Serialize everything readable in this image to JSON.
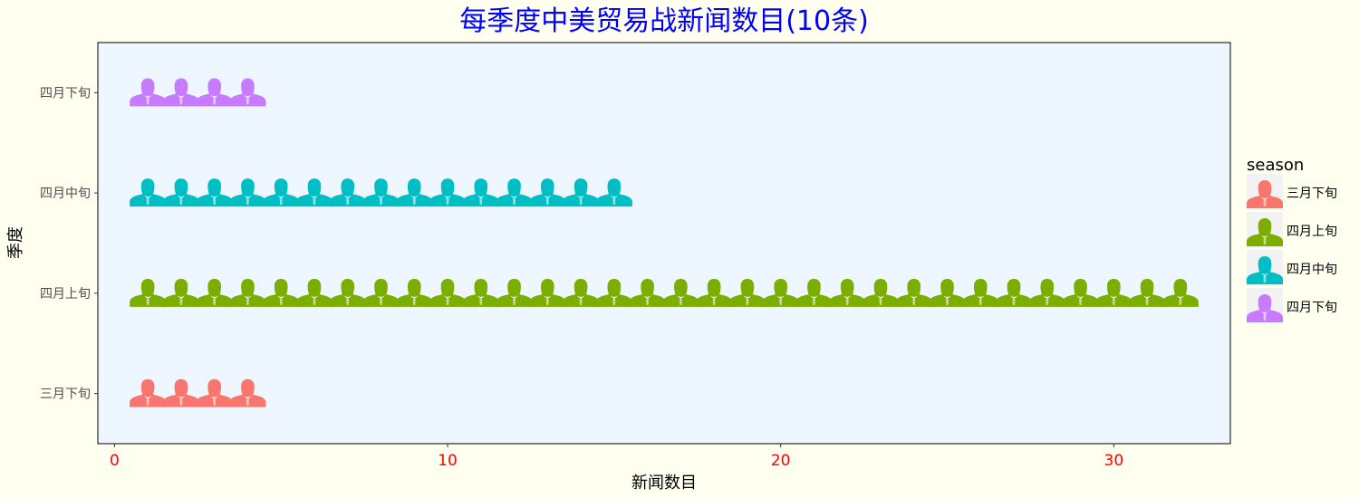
{
  "chart_data": {
    "type": "bar",
    "title": "每季度中美贸易战新闻数目(10条)",
    "xlabel": "新闻数目",
    "ylabel": "季度",
    "orientation": "horizontal",
    "mark": "pictogram-portrait",
    "categories": [
      "三月下旬",
      "四月上旬",
      "四月中旬",
      "四月下旬"
    ],
    "values": [
      4,
      32,
      15,
      4
    ],
    "colors": [
      "#f8766d",
      "#7cae00",
      "#00bfc4",
      "#c77cff"
    ],
    "xlim": [
      -0.5,
      33.5
    ],
    "xticks": [
      0,
      10,
      20,
      30
    ],
    "grid": false,
    "background": "#eef6ff",
    "legend": {
      "title": "season",
      "position": "right",
      "items": [
        "三月下旬",
        "四月上旬",
        "四月中旬",
        "四月下旬"
      ]
    }
  }
}
